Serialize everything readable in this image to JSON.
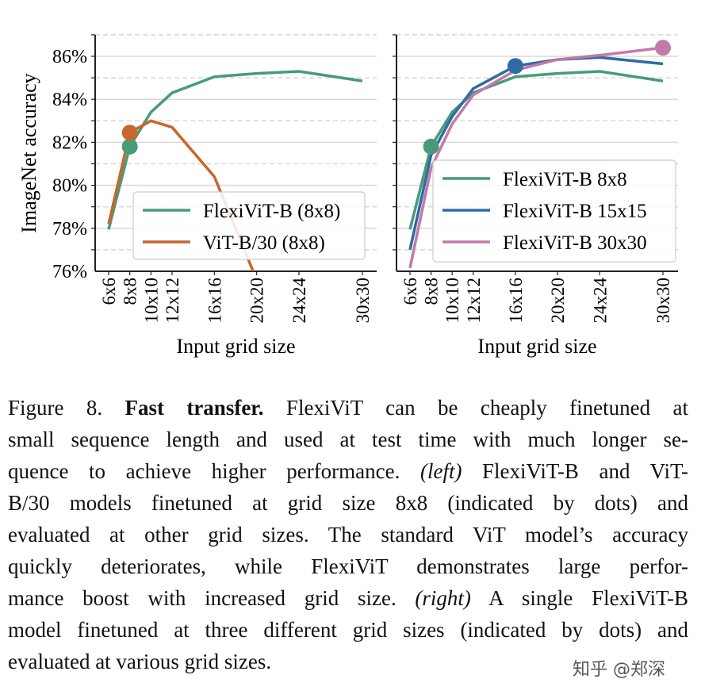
{
  "chart_data": [
    {
      "type": "line",
      "panel": "left",
      "xlabel": "Input grid size",
      "ylabel": "ImageNet accuracy",
      "x_tick_labels": [
        "6x6",
        "8x8",
        "10x10",
        "12x12",
        "16x16",
        "20x20",
        "24x24",
        "30x30"
      ],
      "x": [
        6,
        8,
        10,
        12,
        16,
        20,
        24,
        30
      ],
      "y_tick_labels": [
        "76%",
        "78%",
        "80%",
        "82%",
        "84%",
        "86%"
      ],
      "y_ticks": [
        76,
        78,
        80,
        82,
        84,
        86
      ],
      "ylim": [
        76,
        87
      ],
      "grid": true,
      "legend_position": "lower-right",
      "series": [
        {
          "name": "FlexiViT-B (8x8)",
          "color": "#4a9a78",
          "values": [
            77.95,
            81.8,
            83.4,
            84.3,
            85.05,
            85.2,
            85.3,
            84.85
          ],
          "dot_at": 8
        },
        {
          "name": "ViT-B/30 (8x8)",
          "color": "#c8662e",
          "values": [
            78.2,
            82.45,
            83.0,
            82.7,
            80.4,
            75.6,
            null,
            null
          ],
          "dot_at": 8
        }
      ]
    },
    {
      "type": "line",
      "panel": "right",
      "xlabel": "Input grid size",
      "x_tick_labels": [
        "6x6",
        "8x8",
        "10x10",
        "12x12",
        "16x16",
        "20x20",
        "24x24",
        "30x30"
      ],
      "x": [
        6,
        8,
        10,
        12,
        16,
        20,
        24,
        30
      ],
      "ylim": [
        76,
        87
      ],
      "grid": true,
      "legend_position": "lower-right",
      "series": [
        {
          "name": "FlexiViT-B 8x8",
          "color": "#4a9a78",
          "values": [
            77.95,
            81.8,
            83.4,
            84.3,
            85.05,
            85.2,
            85.3,
            84.85
          ],
          "dot_at": 8
        },
        {
          "name": "FlexiViT-B 15x15",
          "color": "#2f6ca4",
          "values": [
            77.0,
            81.4,
            83.2,
            84.5,
            85.55,
            85.85,
            85.95,
            85.65
          ],
          "dot_at": 16
        },
        {
          "name": "FlexiViT-B 30x30",
          "color": "#c27aa8",
          "values": [
            76.15,
            80.8,
            82.85,
            84.2,
            85.35,
            85.85,
            86.05,
            86.4
          ],
          "dot_at": 30
        }
      ]
    }
  ],
  "caption": {
    "lines": [
      [
        {
          "t": "Figure 8.  ",
          "s": ""
        },
        {
          "t": "Fast transfer.",
          "s": "b"
        },
        {
          "t": "  FlexiViT can be cheaply finetuned at",
          "s": ""
        }
      ],
      [
        {
          "t": "small sequence length and used at test time with much longer se-",
          "s": ""
        }
      ],
      [
        {
          "t": "quence to achieve higher performance. ",
          "s": ""
        },
        {
          "t": "(left)",
          "s": "i"
        },
        {
          "t": " FlexiViT-B and ViT-",
          "s": ""
        }
      ],
      [
        {
          "t": "B/30 models finetuned at grid size 8x8 (indicated by dots) and",
          "s": ""
        }
      ],
      [
        {
          "t": "evaluated at other grid sizes.  The standard ViT model’s accuracy",
          "s": ""
        }
      ],
      [
        {
          "t": "quickly deteriorates, while FlexiViT demonstrates large perfor-",
          "s": ""
        }
      ],
      [
        {
          "t": "mance boost with increased grid size. ",
          "s": ""
        },
        {
          "t": "(right)",
          "s": "i"
        },
        {
          "t": " A single FlexiViT-B",
          "s": ""
        }
      ],
      [
        {
          "t": "model finetuned at three different grid sizes (indicated by dots) and",
          "s": ""
        }
      ],
      [
        {
          "t": "evaluated at various grid sizes.",
          "s": ""
        }
      ]
    ]
  },
  "watermark": "知乎 @郑深"
}
